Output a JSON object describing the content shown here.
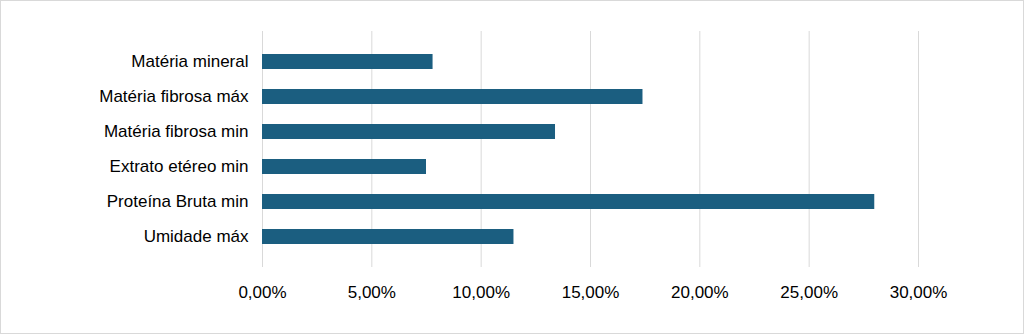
{
  "chart_data": {
    "type": "bar",
    "orientation": "horizontal",
    "categories": [
      "Matéria mineral",
      "Matéria fibrosa máx",
      "Matéria fibrosa min",
      "Extrato etéreo min",
      "Proteína Bruta min",
      "Umidade máx"
    ],
    "values": [
      7.8,
      17.4,
      13.4,
      7.5,
      28,
      11.5
    ],
    "color": "#1b5e80",
    "xlim": [
      0,
      30
    ],
    "xticks": [
      {
        "value": 0,
        "label": "0,00%"
      },
      {
        "value": 5,
        "label": "5,00%"
      },
      {
        "value": 10,
        "label": "10,00%"
      },
      {
        "value": 15,
        "label": "15,00%"
      },
      {
        "value": 20,
        "label": "20,00%"
      },
      {
        "value": 25,
        "label": "25,00%"
      },
      {
        "value": 30,
        "label": "30,00%"
      }
    ],
    "grid": true
  }
}
